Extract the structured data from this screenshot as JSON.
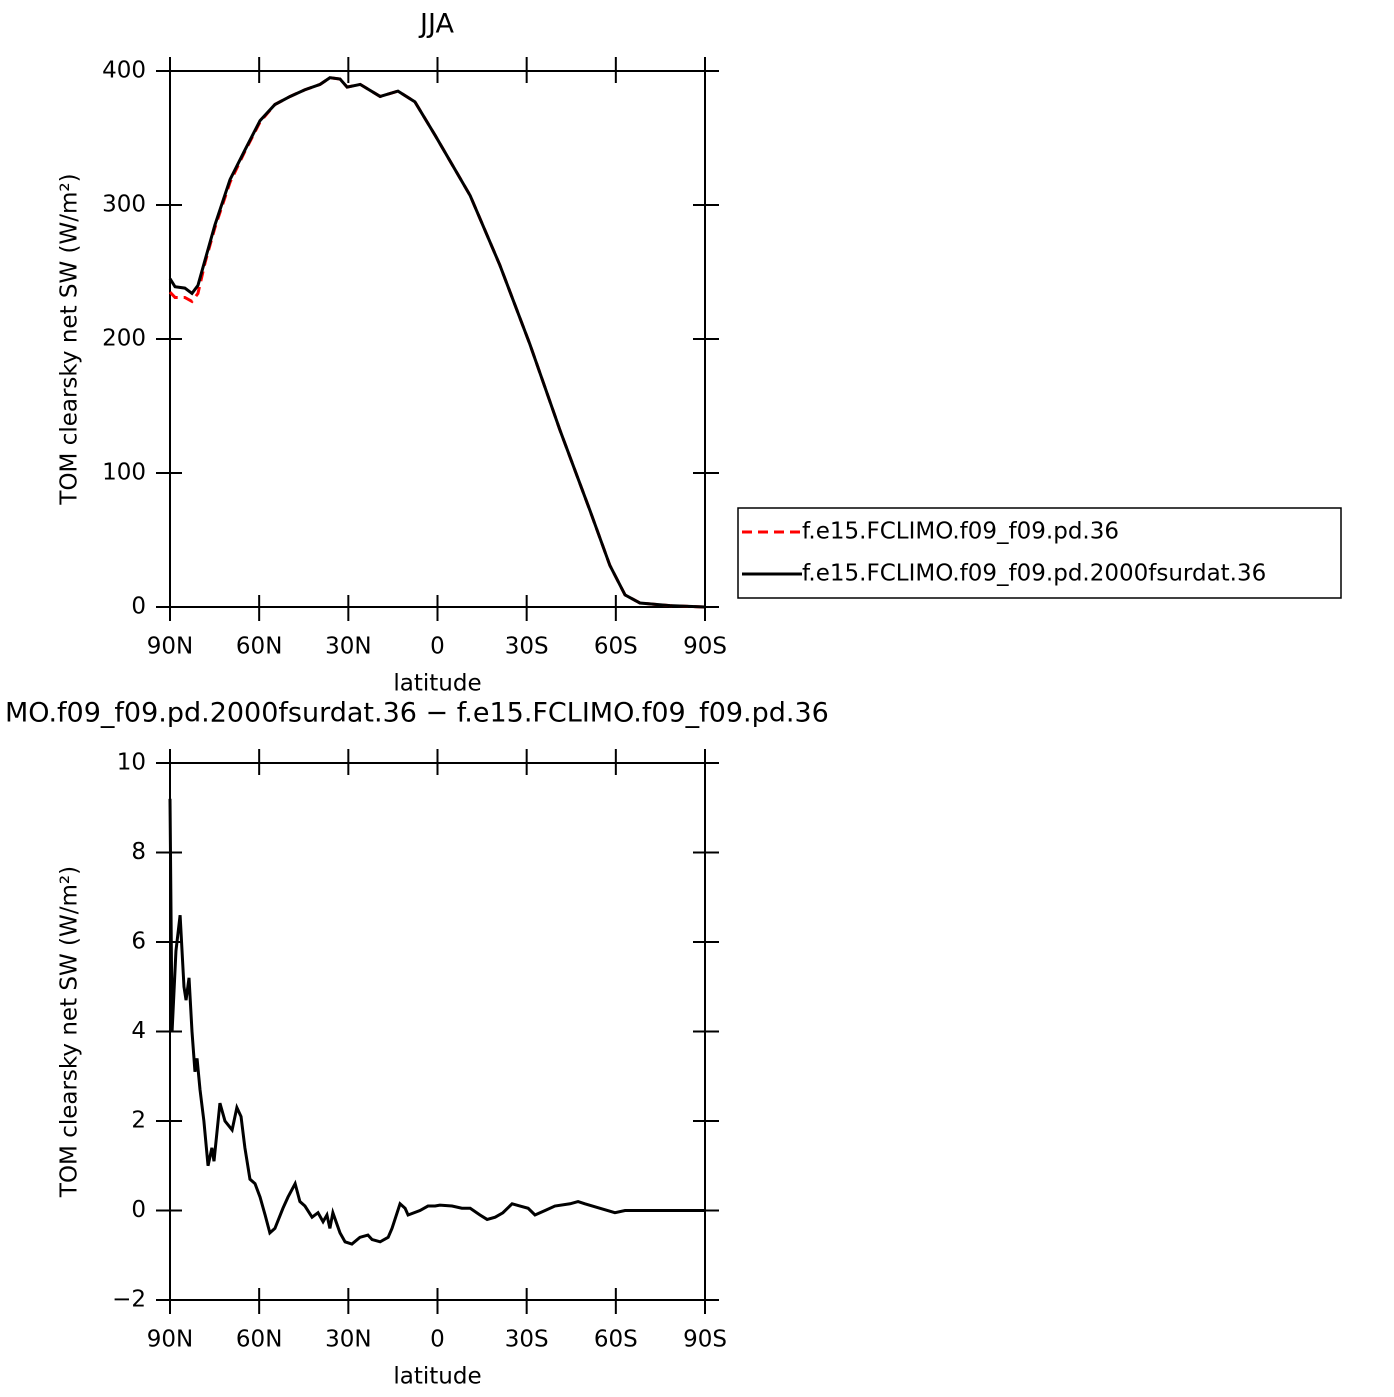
{
  "chart_data": [
    {
      "type": "line",
      "title": "JJA",
      "ylabel": "TOM clearsky net SW (W/m²)",
      "xlabel": "latitude",
      "x": [
        90,
        88.3,
        85,
        82.6,
        80.6,
        78.2,
        74.9,
        69.8,
        64.8,
        59.7,
        54.7,
        49.6,
        44.6,
        39.5,
        36.2,
        32.8,
        30.4,
        26,
        19.3,
        13.3,
        7.6,
        0.8,
        -11,
        -21,
        -31.1,
        -41.2,
        -51.3,
        -58,
        -63.1,
        -68.1,
        -78.2,
        -90
      ],
      "series": [
        {
          "name": "f.e15.FCLIMO.f09_f09.pd.36",
          "color": "#ff0000",
          "line_style": "dashed",
          "values": [
            235,
            231,
            231,
            228,
            234,
            257,
            283,
            317,
            340,
            362,
            375,
            381,
            386,
            390,
            395,
            394,
            388,
            390,
            381,
            385,
            377,
            352,
            307,
            255,
            196,
            132,
            72,
            31,
            9,
            3,
            1,
            0
          ]
        },
        {
          "name": "f.e15.FCLIMO.f09_f09.pd.2000fsurdat.36",
          "color": "#000000",
          "line_style": "solid",
          "values": [
            245,
            239,
            238,
            234,
            240,
            259,
            285,
            319,
            341,
            363,
            375,
            381,
            386,
            390,
            395,
            394,
            388,
            390,
            381,
            385,
            377,
            352,
            307,
            255,
            196,
            132,
            72,
            31,
            9,
            3,
            1,
            0
          ]
        }
      ],
      "xlim": [
        90,
        -90
      ],
      "xticks": [
        {
          "value": 90,
          "label": "90N"
        },
        {
          "value": 60,
          "label": "60N"
        },
        {
          "value": 30,
          "label": "30N"
        },
        0,
        {
          "value": -30,
          "label": "30S"
        },
        {
          "value": -60,
          "label": "60S"
        },
        {
          "value": -90,
          "label": "90S"
        }
      ],
      "ylim": [
        0,
        400
      ],
      "yticks": [
        0,
        100,
        200,
        300,
        400
      ],
      "legend": "right"
    },
    {
      "type": "line",
      "title": "MO.f09_f09.pd.2000fsurdat.36 − f.e15.FCLIMO.f09_f09.pd.36",
      "ylabel": "TOM clearsky net SW (W/m²)",
      "xlabel": "latitude",
      "x": [
        90,
        89.3,
        88,
        86.6,
        85.3,
        84.6,
        83.6,
        82.6,
        81.6,
        80.9,
        79.9,
        78.6,
        77.2,
        75.9,
        75.2,
        73.2,
        71.5,
        69.1,
        67.5,
        66.1,
        64.8,
        63.1,
        61.4,
        59.7,
        58,
        56.4,
        54.7,
        52,
        50.3,
        47.9,
        46.3,
        44.6,
        42.2,
        40.2,
        38.5,
        37.2,
        36.2,
        35.2,
        32.8,
        31.1,
        28.8,
        26.1,
        23.4,
        22,
        19.3,
        16.6,
        15.3,
        12.6,
        10.9,
        9.9,
        5.9,
        3.2,
        0.8,
        -0.8,
        -4.9,
        -8.2,
        -11,
        -14.3,
        -16.7,
        -19.4,
        -22,
        -25.1,
        -27.8,
        -30.5,
        -32.8,
        -36.2,
        -39.5,
        -44.6,
        -47.3,
        -49.6,
        -54.7,
        -59.7,
        -63.1,
        -68.1,
        -90
      ],
      "values": [
        9.2,
        4.0,
        5.8,
        6.6,
        5.0,
        4.7,
        5.2,
        4.0,
        3.1,
        3.4,
        2.7,
        2.0,
        1.0,
        1.4,
        1.1,
        2.4,
        2.0,
        1.8,
        2.3,
        2.1,
        1.4,
        0.7,
        0.6,
        0.3,
        -0.1,
        -0.5,
        -0.4,
        0.05,
        0.3,
        0.6,
        0.2,
        0.1,
        -0.15,
        -0.05,
        -0.25,
        -0.1,
        -0.4,
        -0.05,
        -0.5,
        -0.7,
        -0.75,
        -0.6,
        -0.55,
        -0.65,
        -0.7,
        -0.6,
        -0.4,
        0.15,
        0.05,
        -0.1,
        0.0,
        0.1,
        0.1,
        0.12,
        0.1,
        0.05,
        0.05,
        -0.1,
        -0.2,
        -0.15,
        -0.05,
        0.15,
        0.1,
        0.05,
        -0.1,
        0.0,
        0.1,
        0.15,
        0.2,
        0.15,
        0.05,
        -0.05,
        0.0,
        0.0,
        0.0
      ],
      "color": "#000000",
      "xlim": [
        90,
        -90
      ],
      "xticks": [
        {
          "value": 90,
          "label": "90N"
        },
        {
          "value": 60,
          "label": "60N"
        },
        {
          "value": 30,
          "label": "30N"
        },
        0,
        {
          "value": -30,
          "label": "30S"
        },
        {
          "value": -60,
          "label": "60S"
        },
        {
          "value": -90,
          "label": "90S"
        }
      ],
      "ylim": [
        -2,
        10
      ],
      "yticks": [
        {
          "value": -2,
          "label": "−2"
        },
        0,
        2,
        4,
        6,
        8,
        10
      ]
    }
  ]
}
